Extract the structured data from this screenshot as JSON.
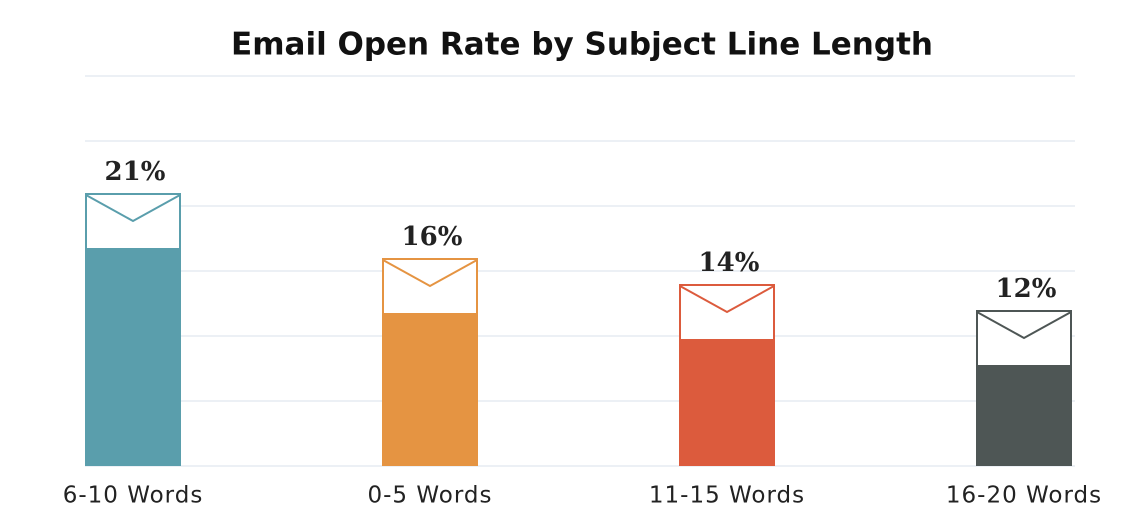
{
  "chart_data": {
    "type": "bar",
    "title": "Email Open Rate by Subject Line Length",
    "categories": [
      "6-10 Words",
      "0-5 Words",
      "11-15 Words",
      "16-20 Words"
    ],
    "values": [
      21,
      16,
      14,
      12
    ],
    "value_labels": [
      "21%",
      "16%",
      "14%",
      "12%"
    ],
    "colors": [
      "#5a9eac",
      "#e59442",
      "#dc5b3d",
      "#4e5655"
    ],
    "ylim": [
      0,
      30
    ],
    "yticks": [
      0,
      5,
      10,
      15,
      20,
      25,
      30
    ],
    "grid": true
  }
}
